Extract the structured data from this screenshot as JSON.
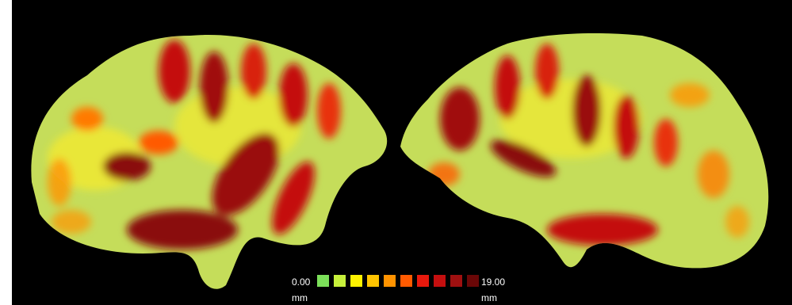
{
  "figure": {
    "background_color": "#000000",
    "surface_base_color": "#c5dd5a"
  },
  "legend": {
    "min_label": "0.00",
    "max_label": "19.00",
    "unit_label": "mm",
    "colors": [
      "#7ce05a",
      "#c7f03b",
      "#fff200",
      "#ffc400",
      "#ff9300",
      "#ff5a00",
      "#e8190d",
      "#c40f0f",
      "#9f1010",
      "#6a0707"
    ]
  }
}
